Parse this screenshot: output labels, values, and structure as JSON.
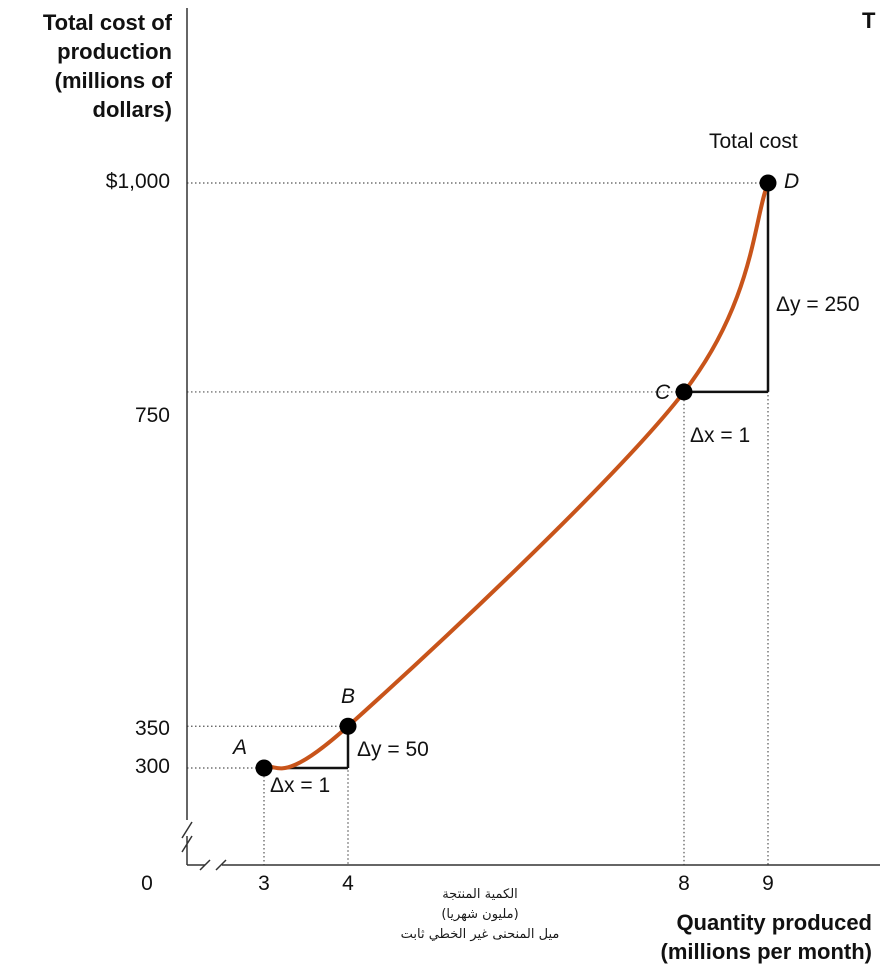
{
  "chart_data": {
    "type": "line",
    "ylabel_lines": [
      "Total cost of",
      "production",
      "(millions of",
      "dollars)"
    ],
    "xlabel_lines": [
      "Quantity produced",
      "(millions per month)"
    ],
    "corner_text": "T",
    "curve_label": "Total cost",
    "x_ticks": [
      {
        "value": 0,
        "label": "0"
      },
      {
        "value": 3,
        "label": "3"
      },
      {
        "value": 4,
        "label": "4"
      },
      {
        "value": 8,
        "label": "8"
      },
      {
        "value": 9,
        "label": "9"
      }
    ],
    "y_ticks": [
      {
        "value": 300,
        "label": "300"
      },
      {
        "value": 350,
        "label": "350"
      },
      {
        "value": 750,
        "label": "750"
      },
      {
        "value": 1000,
        "label": "$1,000"
      }
    ],
    "points": [
      {
        "name": "A",
        "x": 3,
        "y": 300
      },
      {
        "name": "B",
        "x": 4,
        "y": 350
      },
      {
        "name": "C",
        "x": 8,
        "y": 750
      },
      {
        "name": "D",
        "x": 9,
        "y": 1000
      }
    ],
    "annotations": {
      "ab_dx": "Δx = 1",
      "ab_dy": "Δy = 50",
      "cd_dx": "Δx = 1",
      "cd_dy": "Δy = 250"
    },
    "arabic_caption": [
      "الكمية المنتجة",
      "(مليون شهريا)",
      "ميل المنحنى غير الخطي ثابت"
    ],
    "colors": {
      "curve": "#c8541a",
      "axis": "#333333",
      "guide": "#555555",
      "point": "#000000"
    }
  }
}
